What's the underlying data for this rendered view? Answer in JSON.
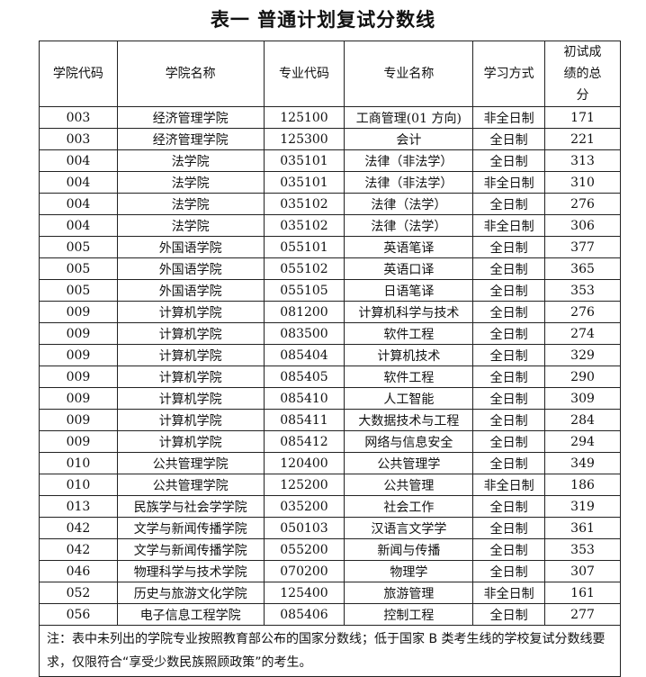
{
  "title": "表一  普通计划复试分数线",
  "headers": [
    "学院代码",
    "学院名称",
    "专业代码",
    "专业名称",
    "学习方式",
    "初试成绩的总分"
  ],
  "rows": [
    [
      "003",
      "经济管理学院",
      "125100",
      "工商管理(01 方向)",
      "非全日制",
      "171"
    ],
    [
      "003",
      "经济管理学院",
      "125300",
      "会计",
      "全日制",
      "221"
    ],
    [
      "004",
      "法学院",
      "035101",
      "法律（非法学）",
      "全日制",
      "313"
    ],
    [
      "004",
      "法学院",
      "035101",
      "法律（非法学）",
      "非全日制",
      "310"
    ],
    [
      "004",
      "法学院",
      "035102",
      "法律（法学）",
      "全日制",
      "276"
    ],
    [
      "004",
      "法学院",
      "035102",
      "法律（法学）",
      "非全日制",
      "306"
    ],
    [
      "005",
      "外国语学院",
      "055101",
      "英语笔译",
      "全日制",
      "377"
    ],
    [
      "005",
      "外国语学院",
      "055102",
      "英语口译",
      "全日制",
      "365"
    ],
    [
      "005",
      "外国语学院",
      "055105",
      "日语笔译",
      "全日制",
      "353"
    ],
    [
      "009",
      "计算机学院",
      "081200",
      "计算机科学与技术",
      "全日制",
      "276"
    ],
    [
      "009",
      "计算机学院",
      "083500",
      "软件工程",
      "全日制",
      "274"
    ],
    [
      "009",
      "计算机学院",
      "085404",
      "计算机技术",
      "全日制",
      "329"
    ],
    [
      "009",
      "计算机学院",
      "085405",
      "软件工程",
      "全日制",
      "290"
    ],
    [
      "009",
      "计算机学院",
      "085410",
      "人工智能",
      "全日制",
      "309"
    ],
    [
      "009",
      "计算机学院",
      "085411",
      "大数据技术与工程",
      "全日制",
      "284"
    ],
    [
      "009",
      "计算机学院",
      "085412",
      "网络与信息安全",
      "全日制",
      "294"
    ],
    [
      "010",
      "公共管理学院",
      "120400",
      "公共管理学",
      "全日制",
      "349"
    ],
    [
      "010",
      "公共管理学院",
      "125200",
      "公共管理",
      "非全日制",
      "186"
    ],
    [
      "013",
      "民族学与社会学学院",
      "035200",
      "社会工作",
      "全日制",
      "319"
    ],
    [
      "042",
      "文学与新闻传播学院",
      "050103",
      "汉语言文学学",
      "全日制",
      "361"
    ],
    [
      "042",
      "文学与新闻传播学院",
      "055200",
      "新闻与传播",
      "全日制",
      "353"
    ],
    [
      "046",
      "物理科学与技术学院",
      "070200",
      "物理学",
      "全日制",
      "307"
    ],
    [
      "052",
      "历史与旅游文化学院",
      "125400",
      "旅游管理",
      "非全日制",
      "161"
    ],
    [
      "056",
      "电子信息工程学院",
      "085406",
      "控制工程",
      "全日制",
      "277"
    ]
  ],
  "note": "注：表中未列出的学院专业按照教育部公布的国家分数线；低于国家 B 类考生线的学校复试分数线要求，仅限符合“享受少数民族照顾政策”的考生。"
}
